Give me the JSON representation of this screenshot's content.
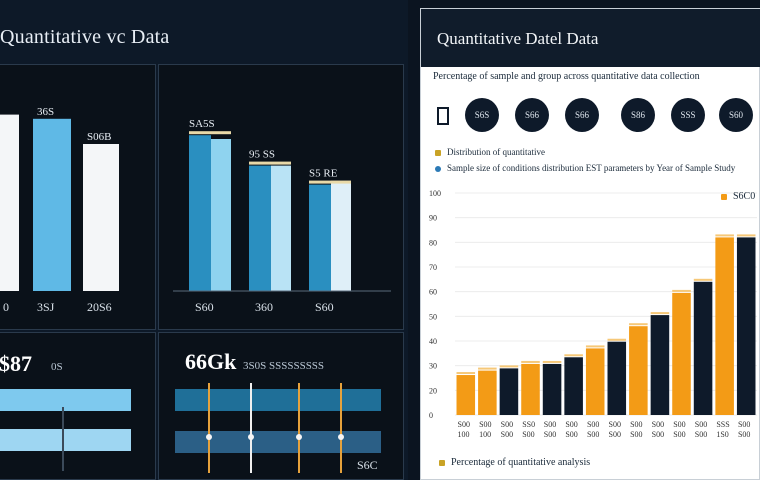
{
  "left": {
    "title": "Quantitative vc Data",
    "card1": {
      "bars": [
        {
          "label": "",
          "value": 84,
          "color": "#f4f6f8",
          "tick": "0"
        },
        {
          "label": "36S",
          "value": 82,
          "color": "#5fb9e6",
          "tick": "3SJ"
        },
        {
          "label": "S06B",
          "value": 70,
          "color": "#f4f6f8",
          "tick": "20S6"
        }
      ]
    },
    "card2": {
      "bars": [
        {
          "label": "SA5S",
          "v1": 82,
          "v2": 80,
          "c1": "#2a8fc0",
          "c2": "#8fd3ef",
          "tick": "S60"
        },
        {
          "label": "95 SS",
          "v1": 66,
          "v2": 66,
          "c1": "#2a8fc0",
          "c2": "#b9e3f5",
          "tick": "360"
        },
        {
          "label": "S5 RE",
          "v1": 56,
          "v2": 58,
          "c1": "#2a8fc0",
          "c2": "#dfeff8",
          "tick": "S60"
        }
      ]
    },
    "card3": {
      "value": "$87",
      "note": "0S"
    },
    "card4": {
      "value": "66Gk",
      "note": "3S0S  SSSSSSSSS",
      "tick": "S6C"
    }
  },
  "right": {
    "title": "Quantitative Datel Data",
    "subtitle": "Percentage of sample and group across quantitative data collection",
    "kpis": [
      "S6S",
      "S66",
      "S66",
      "S86",
      "SSS",
      "S60"
    ],
    "legend1": "Distribution of quantitative",
    "legend2": "Sample size of conditions distribution EST parameters by Year of Sample Study",
    "callout": "S6C0",
    "footer": "Percentage of quantitative analysis",
    "colors": {
      "orange": "#f39b16",
      "navy": "#0e1a2a",
      "blue": "#2c7ab6",
      "gold": "#c9a326"
    }
  },
  "chart_data": {
    "type": "bar",
    "title": "Quantitative Datel Data",
    "ylim": [
      0,
      100
    ],
    "yticks": [
      "0",
      "20",
      "30",
      "40",
      "50",
      "60",
      "70",
      "80",
      "90",
      "100"
    ],
    "categories": [
      "S00 100",
      "S00 100",
      "S00 S00",
      "SS0 S00",
      "S00 S00",
      "S00 S00",
      "S00 S00",
      "S00 S00",
      "S00 S00",
      "S00 S00",
      "S00 S00",
      "S00 S00",
      "SSS 1S0",
      "S00 S00"
    ],
    "values": [
      18,
      20,
      21,
      23,
      23,
      26,
      30,
      33,
      40,
      45,
      55,
      60,
      80,
      80
    ],
    "colors": [
      "orange",
      "orange",
      "navy",
      "orange",
      "navy",
      "navy",
      "orange",
      "navy",
      "orange",
      "navy",
      "orange",
      "navy",
      "orange",
      "navy"
    ],
    "grid": true
  }
}
